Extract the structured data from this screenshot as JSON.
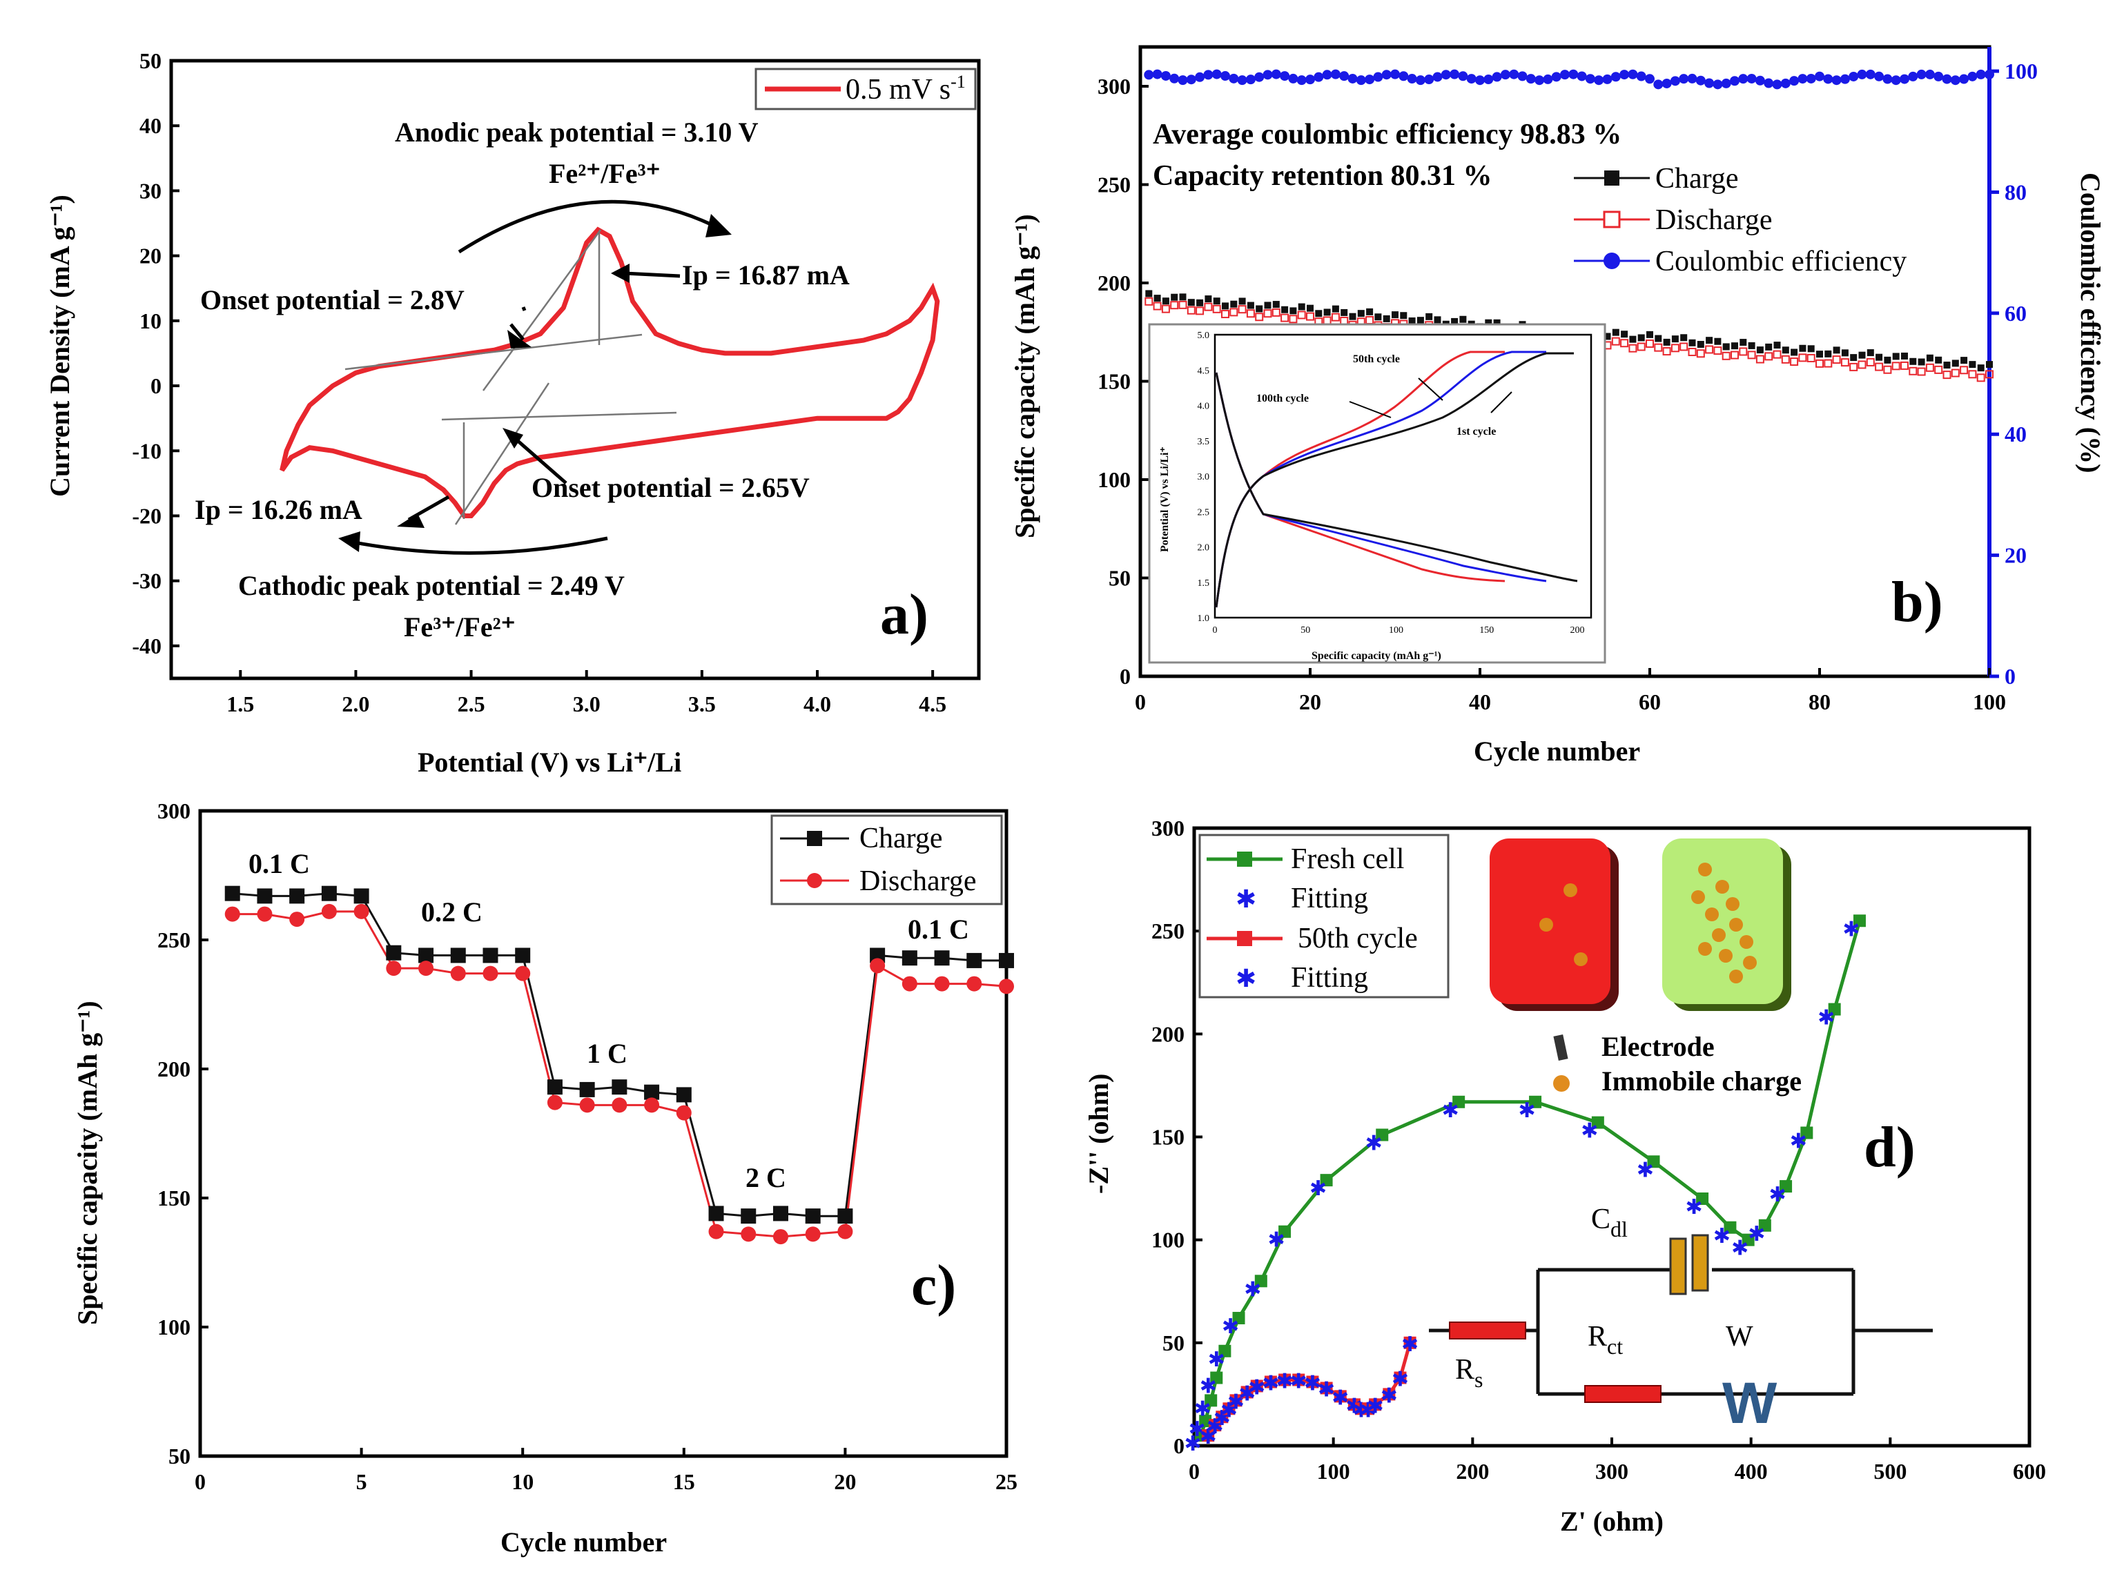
{
  "colors": {
    "red": "#e8272e",
    "black": "#111111",
    "blue": "#1a1ae6",
    "green": "#259225",
    "gray": "#888888"
  },
  "panels": {
    "a": {
      "tag": "a)",
      "legend": "0.5 mV s",
      "legend_sup": "-1",
      "annotations": {
        "anodic": "Anodic peak potential = 3.10 V",
        "anodic_couple": "Fe²⁺/Fe³⁺",
        "onset_ox": "Onset potential = 2.8V",
        "ip_ox": "Ip = 16.87 mA",
        "ip_red": "Ip = 16.26 mA",
        "onset_red": "Onset potential = 2.65V",
        "cathodic": "Cathodic peak potential = 2.49 V",
        "cathodic_couple": "Fe³⁺/Fe²⁺"
      }
    },
    "b": {
      "tag": "b)",
      "text1": "Average coulombic efficiency 98.83 %",
      "text2": "Capacity retention 80.31 %",
      "legend": [
        "Charge",
        "Discharge",
        "Coulombic efficiency"
      ],
      "inset": {
        "labels": [
          "50th cycle",
          "100th cycle",
          "1st cycle"
        ],
        "xlabel": "Specific capacity (mAh g⁻¹)",
        "ylabel": "Potential (V) vs Li/Li⁺",
        "xticks": [
          "0",
          "50",
          "100",
          "150",
          "200"
        ],
        "yticks": [
          "1.0",
          "1.5",
          "2.0",
          "2.5",
          "3.0",
          "3.5",
          "4.0",
          "4.5",
          "5.0"
        ]
      }
    },
    "c": {
      "tag": "c)",
      "rates": [
        "0.1 C",
        "0.2 C",
        "1 C",
        "2 C",
        "0.1 C"
      ],
      "legend": [
        "Charge",
        "Discharge"
      ]
    },
    "d": {
      "tag": "d)",
      "legend": [
        "Fresh cell",
        "Fitting",
        "50th cycle",
        "Fitting"
      ],
      "schematic": {
        "electrode": "Electrode",
        "charge": "Immobile charge"
      },
      "circuit": {
        "cdl": "C",
        "cdl_sub": "dl",
        "rct": "R",
        "rct_sub": "ct",
        "rs": "R",
        "rs_sub": "s",
        "w": "W"
      }
    }
  },
  "chart_data": [
    {
      "type": "line",
      "panel": "a",
      "title": "",
      "xlabel": "Potential (V) vs Li⁺/Li",
      "ylabel": "Current Density (mA g⁻¹)",
      "xlim": [
        1.2,
        4.7
      ],
      "ylim": [
        -45,
        50
      ],
      "xticks": [
        "1.5",
        "2.0",
        "2.5",
        "3.0",
        "3.5",
        "4.0",
        "4.5"
      ],
      "yticks": [
        "-40",
        "-30",
        "-20",
        "-10",
        "0",
        "10",
        "20",
        "30",
        "40",
        "50"
      ],
      "series": [
        {
          "name": "0.5 mV s⁻¹",
          "x": [
            1.68,
            1.7,
            1.75,
            1.8,
            1.9,
            2.0,
            2.1,
            2.2,
            2.3,
            2.4,
            2.5,
            2.6,
            2.7,
            2.8,
            2.9,
            2.95,
            3.0,
            3.05,
            3.1,
            3.15,
            3.2,
            3.3,
            3.4,
            3.5,
            3.6,
            3.7,
            3.8,
            3.9,
            4.0,
            4.1,
            4.2,
            4.3,
            4.4,
            4.45,
            4.5,
            4.52,
            4.5,
            4.45,
            4.4,
            4.35,
            4.3,
            4.2,
            4.1,
            4.0,
            3.9,
            3.8,
            3.7,
            3.6,
            3.5,
            3.4,
            3.3,
            3.2,
            3.1,
            3.0,
            2.9,
            2.8,
            2.7,
            2.65,
            2.6,
            2.55,
            2.5,
            2.47,
            2.43,
            2.38,
            2.3,
            2.2,
            2.1,
            2.0,
            1.9,
            1.8,
            1.72,
            1.68
          ],
          "y": [
            -13,
            -10,
            -6,
            -3,
            0,
            2,
            3,
            3.5,
            4,
            4.5,
            5,
            5.5,
            6.5,
            8,
            12,
            17,
            22,
            24,
            23,
            19,
            13,
            8,
            6.5,
            5.5,
            5,
            5,
            5,
            5.5,
            6,
            6.5,
            7,
            8,
            10,
            12,
            15,
            13,
            7,
            2,
            -2,
            -4,
            -5,
            -5,
            -5,
            -5,
            -5.5,
            -6,
            -6.5,
            -7,
            -7.5,
            -8,
            -8.5,
            -9,
            -9.5,
            -10,
            -10.5,
            -11,
            -12,
            -13,
            -15,
            -18,
            -20,
            -20,
            -18,
            -16,
            -14,
            -13,
            -12,
            -11,
            -10,
            -9.5,
            -11,
            -13
          ]
        }
      ]
    },
    {
      "type": "scatter",
      "panel": "b",
      "xlabel": "Cycle number",
      "ylabel": "Specific capacity (mAh g⁻¹)",
      "y2label": "Coulombic efficiency (%)",
      "xlim": [
        0,
        100
      ],
      "ylim": [
        0,
        320
      ],
      "y2lim": [
        0,
        104
      ],
      "xticks": [
        "0",
        "20",
        "40",
        "60",
        "80",
        "100"
      ],
      "yticks": [
        "0",
        "50",
        "100",
        "150",
        "200",
        "250",
        "300"
      ],
      "y2ticks": [
        "0",
        "20",
        "40",
        "60",
        "80",
        "100"
      ],
      "series": [
        {
          "name": "Charge",
          "start": 193,
          "end": 158
        },
        {
          "name": "Discharge",
          "start": 190,
          "end": 154
        },
        {
          "name": "Coulombic efficiency",
          "start": 99,
          "end": 99
        }
      ]
    },
    {
      "type": "line",
      "panel": "c",
      "xlabel": "Cycle number",
      "ylabel": "Specific capacity (mAh g⁻¹)",
      "xlim": [
        0,
        25
      ],
      "ylim": [
        50,
        300
      ],
      "xticks": [
        "0",
        "5",
        "10",
        "15",
        "20",
        "25"
      ],
      "yticks": [
        "50",
        "100",
        "150",
        "200",
        "250",
        "300"
      ],
      "series": [
        {
          "name": "Charge",
          "x": [
            1,
            2,
            3,
            4,
            5,
            6,
            7,
            8,
            9,
            10,
            11,
            12,
            13,
            14,
            15,
            16,
            17,
            18,
            19,
            20,
            21,
            22,
            23,
            24,
            25
          ],
          "values": [
            268,
            267,
            267,
            268,
            267,
            245,
            244,
            244,
            244,
            244,
            193,
            192,
            193,
            191,
            190,
            144,
            143,
            144,
            143,
            143,
            244,
            243,
            243,
            242,
            242
          ]
        },
        {
          "name": "Discharge",
          "x": [
            1,
            2,
            3,
            4,
            5,
            6,
            7,
            8,
            9,
            10,
            11,
            12,
            13,
            14,
            15,
            16,
            17,
            18,
            19,
            20,
            21,
            22,
            23,
            24,
            25
          ],
          "values": [
            260,
            260,
            258,
            261,
            261,
            239,
            239,
            237,
            237,
            237,
            187,
            186,
            186,
            186,
            183,
            137,
            136,
            135,
            136,
            137,
            240,
            233,
            233,
            233,
            232
          ]
        }
      ]
    },
    {
      "type": "scatter",
      "panel": "d",
      "xlabel": "Z' (ohm)",
      "ylabel": "-Z'' (ohm)",
      "xlim": [
        0,
        600
      ],
      "ylim": [
        0,
        300
      ],
      "xticks": [
        "0",
        "100",
        "200",
        "300",
        "400",
        "500",
        "600"
      ],
      "yticks": [
        "0",
        "50",
        "100",
        "150",
        "200",
        "250",
        "300"
      ],
      "series": [
        {
          "name": "Fresh cell",
          "x": [
            5,
            8,
            12,
            16,
            22,
            32,
            48,
            65,
            95,
            135,
            190,
            245,
            290,
            330,
            365,
            385,
            398,
            410,
            425,
            440,
            460,
            478
          ],
          "y": [
            5,
            12,
            22,
            33,
            46,
            62,
            80,
            104,
            129,
            151,
            167,
            167,
            157,
            138,
            120,
            106,
            100,
            107,
            126,
            152,
            212,
            255
          ]
        },
        {
          "name": "50th cycle",
          "x": [
            10,
            15,
            20,
            25,
            30,
            38,
            45,
            55,
            65,
            75,
            85,
            95,
            105,
            115,
            120,
            125,
            130,
            140,
            148,
            155
          ],
          "y": [
            5,
            10,
            14,
            18,
            22,
            26,
            29,
            31,
            32,
            32,
            31,
            28,
            24,
            20,
            18,
            18,
            20,
            25,
            33,
            50
          ]
        }
      ]
    }
  ]
}
